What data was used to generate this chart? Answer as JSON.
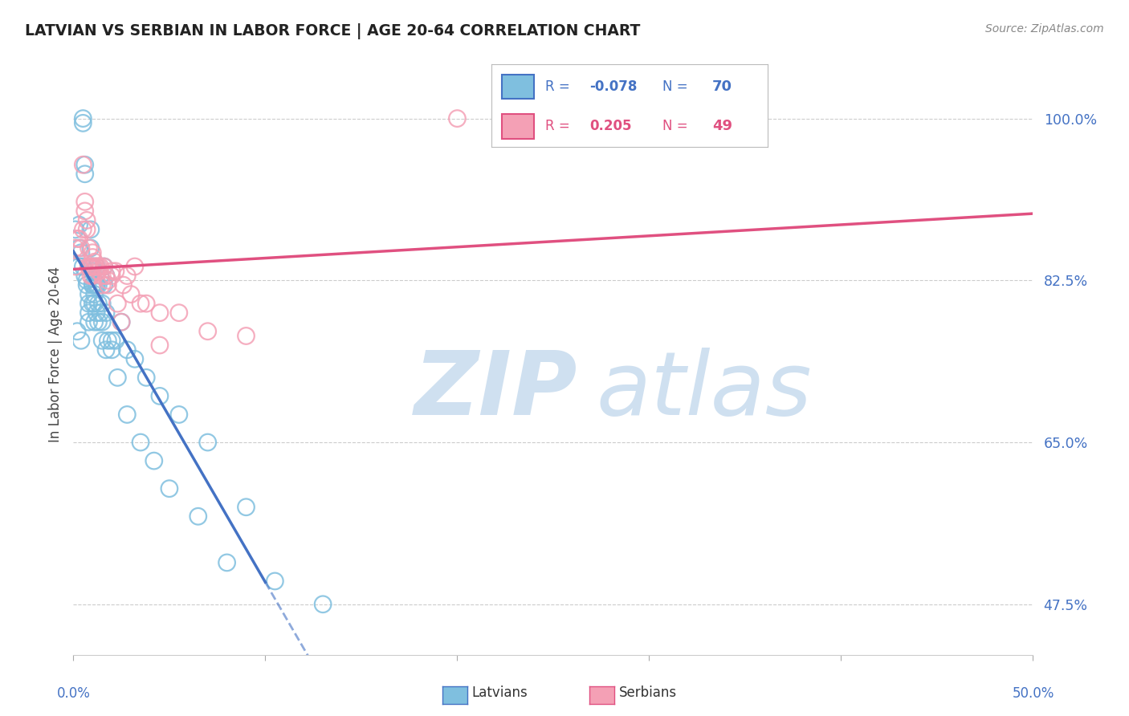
{
  "title": "LATVIAN VS SERBIAN IN LABOR FORCE | AGE 20-64 CORRELATION CHART",
  "source": "Source: ZipAtlas.com",
  "ylabel": "In Labor Force | Age 20-64",
  "latvian_color": "#7fbfdf",
  "serbian_color": "#f4a0b5",
  "latvian_line_color": "#4472C4",
  "serbian_line_color": "#e05080",
  "latvian_r": "-0.078",
  "latvian_n": "70",
  "serbian_r": "0.205",
  "serbian_n": "49",
  "latvian_x": [
    0.1,
    0.3,
    0.3,
    0.3,
    0.4,
    0.5,
    0.5,
    0.5,
    0.6,
    0.6,
    0.7,
    0.7,
    0.8,
    0.8,
    0.8,
    0.9,
    0.9,
    0.9,
    1.0,
    1.0,
    1.0,
    1.0,
    1.0,
    1.1,
    1.1,
    1.1,
    1.2,
    1.2,
    1.2,
    1.3,
    1.3,
    1.4,
    1.4,
    1.5,
    1.5,
    1.6,
    1.6,
    1.7,
    1.7,
    1.8,
    2.0,
    2.2,
    2.5,
    2.8,
    3.2,
    3.8,
    4.5,
    5.5,
    7.0,
    9.0,
    0.2,
    0.4,
    0.6,
    0.8,
    1.0,
    1.1,
    1.2,
    1.3,
    1.5,
    1.7,
    2.0,
    2.3,
    2.8,
    3.5,
    4.2,
    5.0,
    6.5,
    8.0,
    10.5,
    13.0
  ],
  "latvian_y": [
    88.0,
    88.5,
    84.0,
    86.0,
    85.5,
    84.0,
    100.0,
    99.5,
    95.0,
    94.0,
    82.0,
    82.5,
    78.0,
    79.0,
    80.0,
    86.0,
    84.0,
    88.0,
    84.0,
    82.0,
    80.0,
    84.0,
    82.0,
    82.0,
    80.0,
    78.0,
    82.0,
    79.0,
    84.0,
    82.0,
    80.0,
    83.0,
    79.0,
    78.0,
    76.0,
    84.0,
    82.0,
    83.0,
    79.0,
    76.0,
    75.0,
    76.0,
    78.0,
    75.0,
    74.0,
    72.0,
    70.0,
    68.0,
    65.0,
    58.0,
    77.0,
    76.0,
    83.0,
    81.0,
    83.5,
    81.0,
    82.0,
    78.0,
    80.0,
    75.0,
    76.0,
    72.0,
    68.0,
    65.0,
    63.0,
    60.0,
    57.0,
    52.0,
    50.0,
    47.5
  ],
  "serbian_x": [
    0.1,
    0.1,
    0.2,
    0.4,
    0.5,
    0.6,
    0.6,
    0.7,
    0.7,
    0.8,
    0.8,
    0.9,
    0.9,
    1.0,
    1.0,
    1.0,
    1.1,
    1.1,
    1.2,
    1.3,
    1.4,
    1.5,
    1.6,
    1.7,
    1.8,
    2.0,
    2.2,
    2.5,
    2.8,
    3.2,
    3.8,
    4.5,
    5.5,
    7.0,
    9.0,
    0.3,
    0.5,
    0.8,
    1.0,
    1.3,
    1.5,
    1.8,
    2.0,
    2.3,
    2.6,
    3.0,
    3.5,
    4.5,
    20.0
  ],
  "serbian_y": [
    84.0,
    86.0,
    87.0,
    86.0,
    95.0,
    91.0,
    90.0,
    89.0,
    88.0,
    86.0,
    84.0,
    84.0,
    83.0,
    85.0,
    84.0,
    83.0,
    84.5,
    84.0,
    84.0,
    83.5,
    84.0,
    82.0,
    84.0,
    83.0,
    82.5,
    83.0,
    83.5,
    78.0,
    83.0,
    84.0,
    80.0,
    79.0,
    79.0,
    77.0,
    76.5,
    87.0,
    88.0,
    84.0,
    85.5,
    84.0,
    83.0,
    82.0,
    83.5,
    80.0,
    82.0,
    81.0,
    80.0,
    75.5,
    100.0
  ],
  "xlim_data": [
    0,
    50
  ],
  "ylim_data": [
    42,
    107
  ],
  "ytick_vals": [
    47.5,
    65.0,
    82.5,
    100.0
  ],
  "xtick_label_left": "0.0%",
  "xtick_label_right": "50.0%",
  "lv_solid_end": 10.0,
  "lv_dash_end": 50.0,
  "watermark_color": "#cfe0f0"
}
